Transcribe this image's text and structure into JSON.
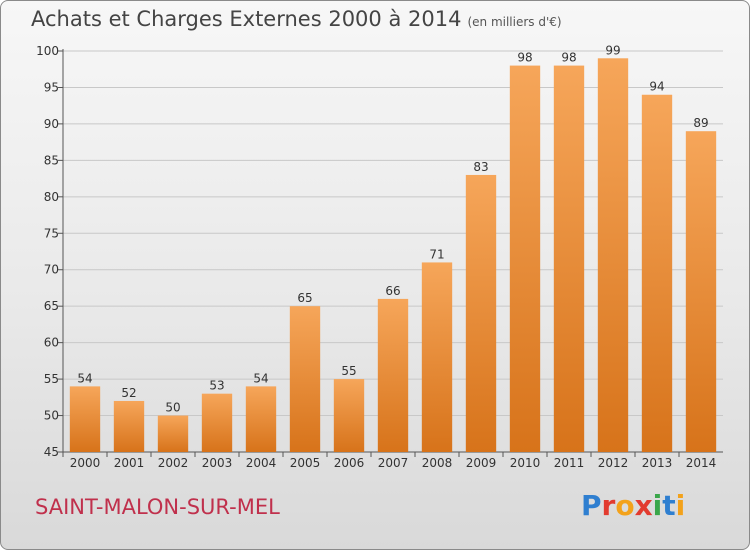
{
  "title": "Achats et Charges Externes 2000 à 2014",
  "unit_note": "(en milliers d'€)",
  "commune": "SAINT-MALON-SUR-MEL",
  "logo": {
    "letters": [
      "P",
      "r",
      "o",
      "x",
      "i",
      "t",
      "i"
    ],
    "colors": [
      "#2f7fd0",
      "#e23b2f",
      "#f3a21b",
      "#e23b2f",
      "#3aa64a",
      "#2f7fd0",
      "#f3a21b"
    ]
  },
  "colors": {
    "bar_top": "#f6a65a",
    "bar_bottom": "#d7731a",
    "grid": "#c8c8c8",
    "axis_text": "#333333",
    "commune": "#c0304c"
  },
  "chart_data": {
    "type": "bar",
    "categories": [
      "2000",
      "2001",
      "2002",
      "2003",
      "2004",
      "2005",
      "2006",
      "2007",
      "2008",
      "2009",
      "2010",
      "2011",
      "2012",
      "2013",
      "2014"
    ],
    "values": [
      54,
      52,
      50,
      53,
      54,
      65,
      55,
      66,
      71,
      83,
      98,
      98,
      99,
      94,
      89
    ],
    "ylim": [
      45,
      100
    ],
    "yticks": [
      45,
      50,
      55,
      60,
      65,
      70,
      75,
      80,
      85,
      90,
      95,
      100
    ],
    "grid": true,
    "value_labels": true
  }
}
